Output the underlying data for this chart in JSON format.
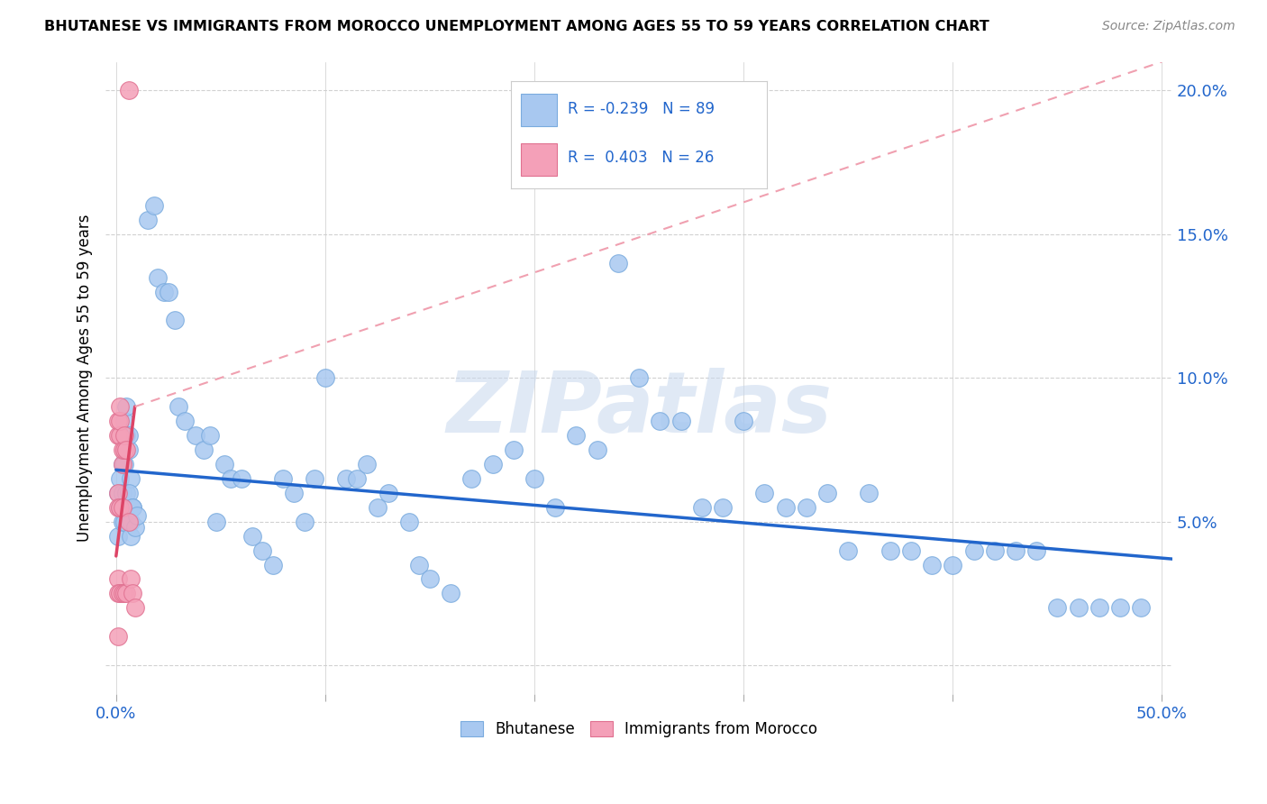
{
  "title": "BHUTANESE VS IMMIGRANTS FROM MOROCCO UNEMPLOYMENT AMONG AGES 55 TO 59 YEARS CORRELATION CHART",
  "source": "Source: ZipAtlas.com",
  "ylabel": "Unemployment Among Ages 55 to 59 years",
  "xlim": [
    -0.005,
    0.505
  ],
  "ylim": [
    -0.01,
    0.21
  ],
  "xticks": [
    0.0,
    0.1,
    0.2,
    0.3,
    0.4,
    0.5
  ],
  "xticklabels_ends": [
    "0.0%",
    "",
    "",
    "",
    "",
    "50.0%"
  ],
  "yticks": [
    0.0,
    0.05,
    0.1,
    0.15,
    0.2
  ],
  "yticklabels": [
    "",
    "5.0%",
    "10.0%",
    "15.0%",
    "20.0%"
  ],
  "series1_color": "#a8c8f0",
  "series1_edge": "#7aabde",
  "series2_color": "#f4a0b8",
  "series2_edge": "#e07090",
  "trendline1_color": "#2266cc",
  "trendline2_solid_color": "#dd4466",
  "trendline2_dash_color": "#f0a0b0",
  "legend_r1": "-0.239",
  "legend_n1": "89",
  "legend_r2": "0.403",
  "legend_n2": "26",
  "watermark": "ZIPatlas",
  "bhutanese_x": [
    0.001,
    0.002,
    0.001,
    0.002,
    0.003,
    0.002,
    0.003,
    0.004,
    0.003,
    0.004,
    0.005,
    0.004,
    0.005,
    0.006,
    0.005,
    0.006,
    0.007,
    0.006,
    0.007,
    0.008,
    0.007,
    0.008,
    0.009,
    0.01,
    0.015,
    0.018,
    0.02,
    0.023,
    0.025,
    0.028,
    0.03,
    0.033,
    0.038,
    0.042,
    0.045,
    0.048,
    0.052,
    0.055,
    0.06,
    0.065,
    0.07,
    0.075,
    0.08,
    0.085,
    0.09,
    0.095,
    0.1,
    0.11,
    0.115,
    0.12,
    0.125,
    0.13,
    0.14,
    0.145,
    0.15,
    0.16,
    0.17,
    0.18,
    0.19,
    0.2,
    0.21,
    0.22,
    0.23,
    0.24,
    0.25,
    0.26,
    0.27,
    0.28,
    0.29,
    0.3,
    0.31,
    0.32,
    0.33,
    0.34,
    0.35,
    0.36,
    0.37,
    0.38,
    0.39,
    0.4,
    0.41,
    0.42,
    0.43,
    0.44,
    0.45,
    0.46,
    0.47,
    0.48,
    0.49
  ],
  "bhutanese_y": [
    0.06,
    0.055,
    0.045,
    0.055,
    0.05,
    0.065,
    0.07,
    0.05,
    0.06,
    0.07,
    0.06,
    0.085,
    0.09,
    0.075,
    0.08,
    0.08,
    0.065,
    0.06,
    0.05,
    0.055,
    0.045,
    0.055,
    0.048,
    0.052,
    0.155,
    0.16,
    0.135,
    0.13,
    0.13,
    0.12,
    0.09,
    0.085,
    0.08,
    0.075,
    0.08,
    0.05,
    0.07,
    0.065,
    0.065,
    0.045,
    0.04,
    0.035,
    0.065,
    0.06,
    0.05,
    0.065,
    0.1,
    0.065,
    0.065,
    0.07,
    0.055,
    0.06,
    0.05,
    0.035,
    0.03,
    0.025,
    0.065,
    0.07,
    0.075,
    0.065,
    0.055,
    0.08,
    0.075,
    0.14,
    0.1,
    0.085,
    0.085,
    0.055,
    0.055,
    0.085,
    0.06,
    0.055,
    0.055,
    0.06,
    0.04,
    0.06,
    0.04,
    0.04,
    0.035,
    0.035,
    0.04,
    0.04,
    0.04,
    0.04,
    0.02,
    0.02,
    0.02,
    0.02,
    0.02
  ],
  "morocco_x": [
    0.001,
    0.001,
    0.001,
    0.001,
    0.001,
    0.001,
    0.001,
    0.002,
    0.002,
    0.002,
    0.002,
    0.002,
    0.003,
    0.003,
    0.003,
    0.003,
    0.004,
    0.004,
    0.004,
    0.005,
    0.005,
    0.006,
    0.006,
    0.007,
    0.008,
    0.009
  ],
  "morocco_y": [
    0.06,
    0.055,
    0.08,
    0.085,
    0.03,
    0.025,
    0.01,
    0.08,
    0.085,
    0.09,
    0.055,
    0.025,
    0.07,
    0.075,
    0.055,
    0.025,
    0.075,
    0.08,
    0.025,
    0.075,
    0.025,
    0.2,
    0.05,
    0.03,
    0.025,
    0.02
  ],
  "trendline1_x0": 0.0,
  "trendline1_x1": 0.505,
  "trendline1_y0": 0.068,
  "trendline1_y1": 0.037,
  "trendline2_solid_x0": 0.0,
  "trendline2_solid_x1": 0.009,
  "trendline2_solid_y0": 0.038,
  "trendline2_solid_y1": 0.09,
  "trendline2_dash_x0": 0.009,
  "trendline2_dash_x1": 0.5,
  "trendline2_dash_y0": 0.09,
  "trendline2_dash_y1": 0.21
}
